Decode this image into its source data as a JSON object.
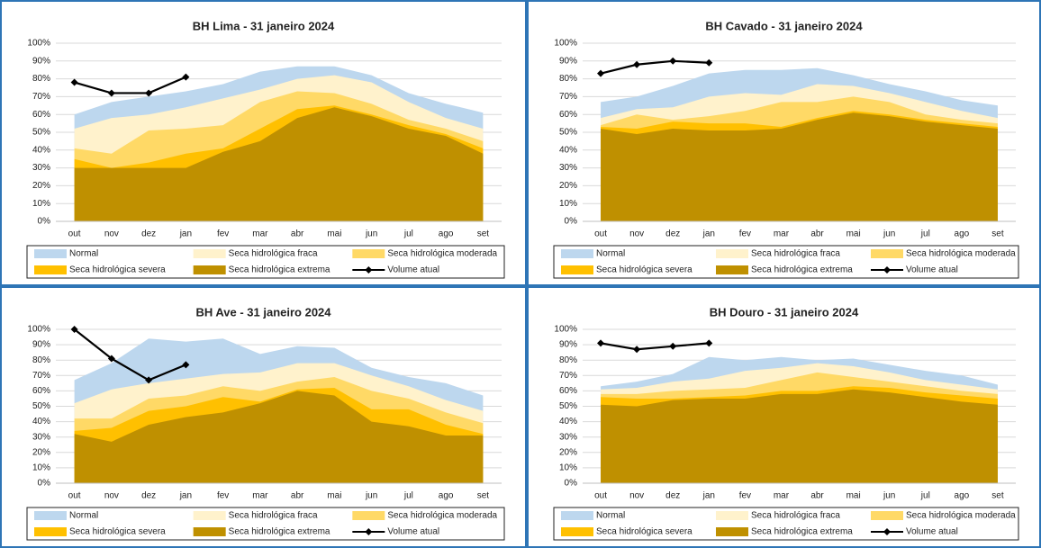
{
  "chart_data": [
    {
      "type": "area",
      "title": "BH Lima - 31 janeiro 2024",
      "categories": [
        "out",
        "nov",
        "dez",
        "jan",
        "fev",
        "mar",
        "abr",
        "mai",
        "jun",
        "jul",
        "ago",
        "set"
      ],
      "ylim": [
        0,
        100
      ],
      "yticks": [
        {
          "value": 0,
          "label": "0%"
        },
        {
          "value": 10,
          "label": "10%"
        },
        {
          "value": 20,
          "label": "20%"
        },
        {
          "value": 30,
          "label": "30%"
        },
        {
          "value": 40,
          "label": "40%"
        },
        {
          "value": 50,
          "label": "50%"
        },
        {
          "value": 60,
          "label": "60%"
        },
        {
          "value": 70,
          "label": "70%"
        },
        {
          "value": 80,
          "label": "80%"
        },
        {
          "value": 90,
          "label": "90%"
        },
        {
          "value": 100,
          "label": "100%"
        }
      ],
      "grid": true,
      "series": [
        {
          "name": "Normal",
          "color": "#bdd7ee",
          "values": [
            60,
            67,
            70,
            73,
            77,
            84,
            87,
            87,
            82,
            72,
            66,
            61
          ]
        },
        {
          "name": "Seca hidrológica fraca",
          "color": "#fff2cc",
          "values": [
            52,
            58,
            60,
            64,
            69,
            74,
            80,
            82,
            78,
            67,
            58,
            52
          ]
        },
        {
          "name": "Seca hidrológica moderada",
          "color": "#ffd966",
          "values": [
            41,
            38,
            51,
            52,
            54,
            67,
            73,
            72,
            66,
            57,
            52,
            45
          ]
        },
        {
          "name": "Seca hidrológica severa",
          "color": "#ffc000",
          "values": [
            35,
            30,
            33,
            38,
            41,
            52,
            63,
            65,
            60,
            54,
            49,
            41
          ]
        },
        {
          "name": "Seca hidrológica extrema",
          "color": "#bf9000",
          "values": [
            30,
            30,
            30,
            30,
            39,
            45,
            58,
            64,
            59,
            52,
            48,
            38
          ]
        },
        {
          "name": "Volume atual",
          "color": "#000000",
          "line": true,
          "values": [
            78,
            72,
            72,
            81,
            null,
            null,
            null,
            null,
            null,
            null,
            null,
            null
          ]
        }
      ]
    },
    {
      "type": "area",
      "title": "BH Cavado - 31 janeiro 2024",
      "categories": [
        "out",
        "nov",
        "dez",
        "jan",
        "fev",
        "mar",
        "abr",
        "mai",
        "jun",
        "jul",
        "ago",
        "set"
      ],
      "ylim": [
        0,
        100
      ],
      "yticks": [
        {
          "value": 0,
          "label": "0%"
        },
        {
          "value": 10,
          "label": "10%"
        },
        {
          "value": 20,
          "label": "20%"
        },
        {
          "value": 30,
          "label": "30%"
        },
        {
          "value": 40,
          "label": "40%"
        },
        {
          "value": 50,
          "label": "50%"
        },
        {
          "value": 60,
          "label": "60%"
        },
        {
          "value": 70,
          "label": "70%"
        },
        {
          "value": 80,
          "label": "80%"
        },
        {
          "value": 90,
          "label": "90%"
        },
        {
          "value": 100,
          "label": "100%"
        }
      ],
      "grid": true,
      "series": [
        {
          "name": "Normal",
          "color": "#bdd7ee",
          "values": [
            67,
            70,
            76,
            83,
            85,
            85,
            86,
            82,
            77,
            73,
            68,
            65
          ]
        },
        {
          "name": "Seca hidrológica fraca",
          "color": "#fff2cc",
          "values": [
            58,
            63,
            64,
            70,
            72,
            71,
            77,
            76,
            72,
            67,
            62,
            58
          ]
        },
        {
          "name": "Seca hidrológica moderada",
          "color": "#ffd966",
          "values": [
            54,
            60,
            57,
            59,
            62,
            67,
            67,
            70,
            67,
            60,
            57,
            55
          ]
        },
        {
          "name": "Seca hidrológica severa",
          "color": "#ffc000",
          "values": [
            53,
            52,
            56,
            55,
            55,
            53,
            58,
            62,
            60,
            57,
            55,
            53
          ]
        },
        {
          "name": "Seca hidrológica extrema",
          "color": "#bf9000",
          "values": [
            52,
            49,
            52,
            51,
            51,
            52,
            57,
            61,
            59,
            56,
            54,
            52
          ]
        },
        {
          "name": "Volume atual",
          "color": "#000000",
          "line": true,
          "values": [
            83,
            88,
            90,
            89,
            null,
            null,
            null,
            null,
            null,
            null,
            null,
            null
          ]
        }
      ]
    },
    {
      "type": "area",
      "title": "BH Ave - 31 janeiro 2024",
      "categories": [
        "out",
        "nov",
        "dez",
        "jan",
        "fev",
        "mar",
        "abr",
        "mai",
        "jun",
        "jul",
        "ago",
        "set"
      ],
      "ylim": [
        0,
        100
      ],
      "yticks": [
        {
          "value": 0,
          "label": "0%"
        },
        {
          "value": 10,
          "label": "10%"
        },
        {
          "value": 20,
          "label": "20%"
        },
        {
          "value": 30,
          "label": "30%"
        },
        {
          "value": 40,
          "label": "40%"
        },
        {
          "value": 50,
          "label": "50%"
        },
        {
          "value": 60,
          "label": "60%"
        },
        {
          "value": 70,
          "label": "70%"
        },
        {
          "value": 80,
          "label": "80%"
        },
        {
          "value": 90,
          "label": "90%"
        },
        {
          "value": 100,
          "label": "100%"
        }
      ],
      "grid": true,
      "series": [
        {
          "name": "Normal",
          "color": "#bdd7ee",
          "values": [
            67,
            78,
            94,
            92,
            94,
            84,
            89,
            88,
            75,
            69,
            65,
            57
          ]
        },
        {
          "name": "Seca hidrológica fraca",
          "color": "#fff2cc",
          "values": [
            52,
            61,
            65,
            68,
            71,
            72,
            78,
            78,
            70,
            63,
            54,
            47
          ]
        },
        {
          "name": "Seca hidrológica moderada",
          "color": "#ffd966",
          "values": [
            42,
            42,
            55,
            57,
            63,
            60,
            66,
            69,
            60,
            55,
            46,
            39
          ]
        },
        {
          "name": "Seca hidrológica severa",
          "color": "#ffc000",
          "values": [
            34,
            36,
            47,
            50,
            56,
            53,
            61,
            62,
            48,
            48,
            38,
            32
          ]
        },
        {
          "name": "Seca hidrológica extrema",
          "color": "#bf9000",
          "values": [
            32,
            27,
            38,
            43,
            46,
            52,
            60,
            57,
            40,
            37,
            31,
            31
          ]
        },
        {
          "name": "Volume atual",
          "color": "#000000",
          "line": true,
          "values": [
            100,
            81,
            67,
            77,
            null,
            null,
            null,
            null,
            null,
            null,
            null,
            null
          ]
        }
      ]
    },
    {
      "type": "area",
      "title": "BH Douro - 31 janeiro 2024",
      "categories": [
        "out",
        "nov",
        "dez",
        "jan",
        "fev",
        "mar",
        "abr",
        "mai",
        "jun",
        "jul",
        "ago",
        "set"
      ],
      "ylim": [
        0,
        100
      ],
      "yticks": [
        {
          "value": 0,
          "label": "0%"
        },
        {
          "value": 10,
          "label": "10%"
        },
        {
          "value": 20,
          "label": "20%"
        },
        {
          "value": 30,
          "label": "30%"
        },
        {
          "value": 40,
          "label": "40%"
        },
        {
          "value": 50,
          "label": "50%"
        },
        {
          "value": 60,
          "label": "60%"
        },
        {
          "value": 70,
          "label": "70%"
        },
        {
          "value": 80,
          "label": "80%"
        },
        {
          "value": 90,
          "label": "90%"
        },
        {
          "value": 100,
          "label": "100%"
        }
      ],
      "grid": true,
      "series": [
        {
          "name": "Normal",
          "color": "#bdd7ee",
          "values": [
            63,
            66,
            71,
            82,
            80,
            82,
            80,
            81,
            77,
            73,
            70,
            64
          ]
        },
        {
          "name": "Seca hidrológica fraca",
          "color": "#fff2cc",
          "values": [
            61,
            62,
            66,
            68,
            73,
            75,
            78,
            76,
            72,
            67,
            64,
            61
          ]
        },
        {
          "name": "Seca hidrológica moderada",
          "color": "#ffd966",
          "values": [
            58,
            58,
            60,
            61,
            62,
            67,
            72,
            69,
            66,
            63,
            60,
            58
          ]
        },
        {
          "name": "Seca hidrológica severa",
          "color": "#ffc000",
          "values": [
            56,
            55,
            55,
            56,
            57,
            60,
            60,
            63,
            62,
            59,
            57,
            55
          ]
        },
        {
          "name": "Seca hidrológica extrema",
          "color": "#bf9000",
          "values": [
            51,
            50,
            54,
            55,
            55,
            58,
            58,
            61,
            59,
            56,
            53,
            51
          ]
        },
        {
          "name": "Volume atual",
          "color": "#000000",
          "line": true,
          "values": [
            91,
            87,
            89,
            91,
            null,
            null,
            null,
            null,
            null,
            null,
            null,
            null
          ]
        }
      ]
    }
  ]
}
